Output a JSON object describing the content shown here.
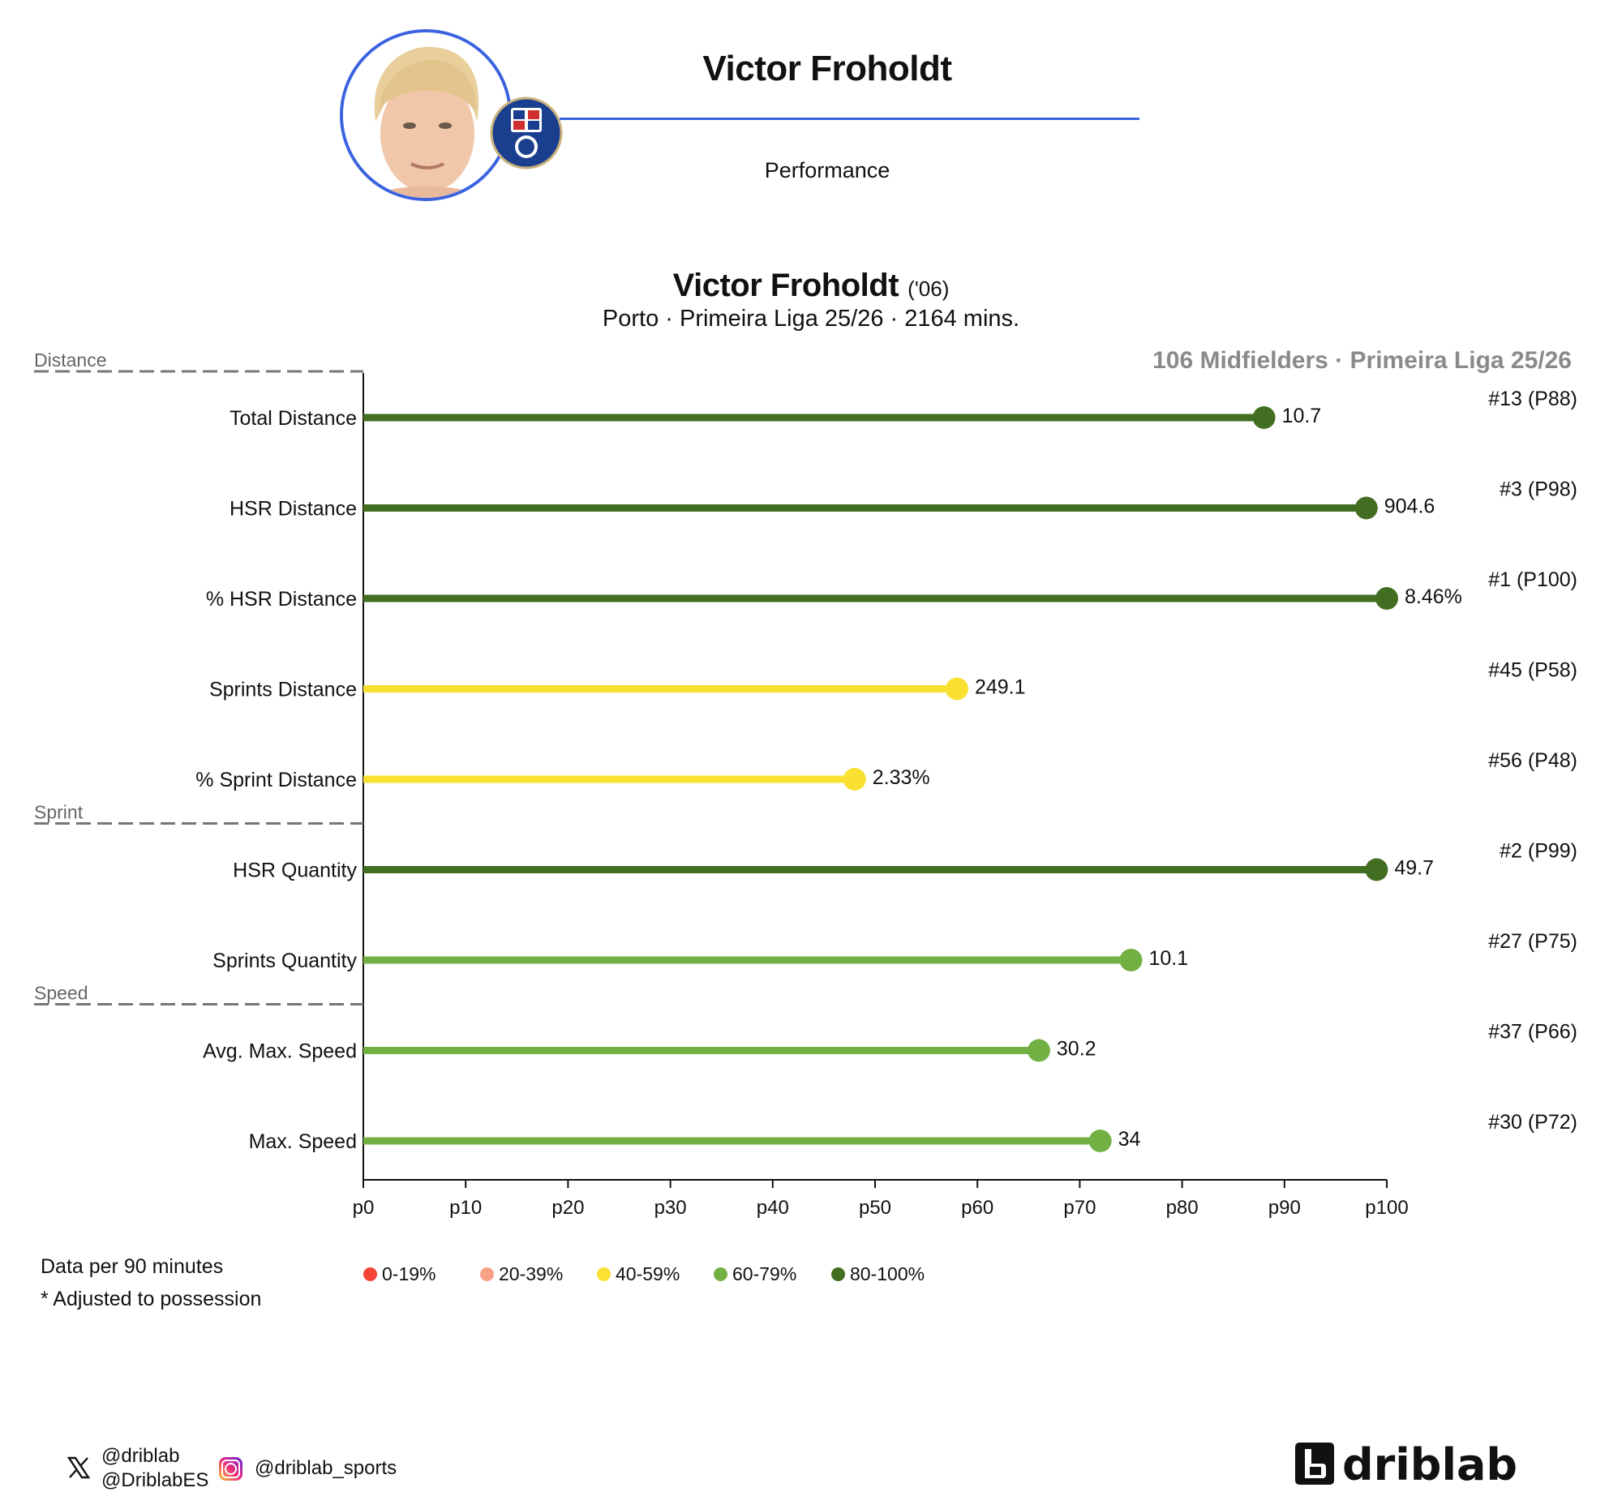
{
  "header": {
    "player_name": "Victor Froholdt",
    "subtitle": "Performance"
  },
  "chart_title": {
    "name": "Victor Froholdt",
    "year": "('06)",
    "subtitle": "Porto · Primeira Liga 25/26 · 2164 mins.",
    "comparison_pool": "106 Midfielders · Primeira Liga 25/26"
  },
  "colors": {
    "accent_blue": "#3b63e0",
    "band_0_19": "#f44336",
    "band_20_39": "#f9a185",
    "band_40_59": "#f9e031",
    "band_60_79": "#72b043",
    "band_80_100": "#426e22"
  },
  "chart_data": {
    "type": "lollipop",
    "x_axis": {
      "range": [
        0,
        100
      ],
      "ticks": [
        "p0",
        "p10",
        "p20",
        "p30",
        "p40",
        "p50",
        "p60",
        "p70",
        "p80",
        "p90",
        "p100"
      ]
    },
    "sections": [
      {
        "label": "Distance",
        "before_index": 0
      },
      {
        "label": "Sprint",
        "before_index": 5
      },
      {
        "label": "Speed",
        "before_index": 7
      }
    ],
    "metrics": [
      {
        "label": "Total Distance",
        "percentile": 88,
        "value": "10.7",
        "rank": "#13 (P88)",
        "band": "band_80_100"
      },
      {
        "label": "HSR Distance",
        "percentile": 98,
        "value": "904.6",
        "rank": "#3 (P98)",
        "band": "band_80_100"
      },
      {
        "label": "% HSR Distance",
        "percentile": 100,
        "value": "8.46%",
        "rank": "#1 (P100)",
        "band": "band_80_100"
      },
      {
        "label": "Sprints Distance",
        "percentile": 58,
        "value": "249.1",
        "rank": "#45 (P58)",
        "band": "band_40_59"
      },
      {
        "label": "% Sprint Distance",
        "percentile": 48,
        "value": "2.33%",
        "rank": "#56 (P48)",
        "band": "band_40_59"
      },
      {
        "label": "HSR Quantity",
        "percentile": 99,
        "value": "49.7",
        "rank": "#2 (P99)",
        "band": "band_80_100"
      },
      {
        "label": "Sprints Quantity",
        "percentile": 75,
        "value": "10.1",
        "rank": "#27 (P75)",
        "band": "band_60_79"
      },
      {
        "label": "Avg. Max. Speed",
        "percentile": 66,
        "value": "30.2",
        "rank": "#37 (P66)",
        "band": "band_60_79"
      },
      {
        "label": "Max. Speed",
        "percentile": 72,
        "value": "34",
        "rank": "#30 (P72)",
        "band": "band_60_79"
      }
    ]
  },
  "legend": {
    "note1": "Data per 90 minutes",
    "note2": "* Adjusted to possession",
    "items": [
      {
        "label": "0-19%",
        "color": "band_0_19"
      },
      {
        "label": "20-39%",
        "color": "band_20_39"
      },
      {
        "label": "40-59%",
        "color": "band_40_59"
      },
      {
        "label": "60-79%",
        "color": "band_60_79"
      },
      {
        "label": "80-100%",
        "color": "band_80_100"
      }
    ]
  },
  "footer": {
    "x_handle_1": "@driblab",
    "x_handle_2": "@DriblabES",
    "instagram_handle": "@driblab_sports",
    "brand": "driblab",
    "icons": [
      "x-logo-icon",
      "instagram-icon"
    ]
  }
}
